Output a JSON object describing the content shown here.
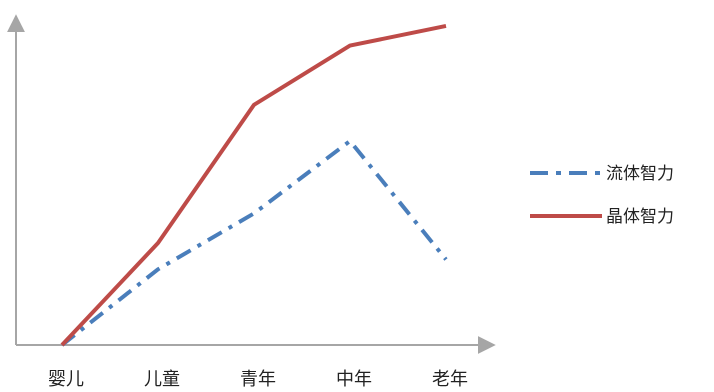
{
  "chart_data": {
    "type": "line",
    "categories": [
      "婴儿",
      "儿童",
      "青年",
      "中年",
      "老年"
    ],
    "series": [
      {
        "name": "流体智力",
        "values": [
          0,
          23,
          40,
          62,
          26
        ],
        "color": "#4a7ebb",
        "style": "dash-dot"
      },
      {
        "name": "晶体智力",
        "values": [
          0,
          31,
          73,
          91,
          97
        ],
        "color": "#be4b48",
        "style": "solid"
      }
    ],
    "ylim": [
      0,
      100
    ],
    "grid": false,
    "legend_position": "right"
  }
}
